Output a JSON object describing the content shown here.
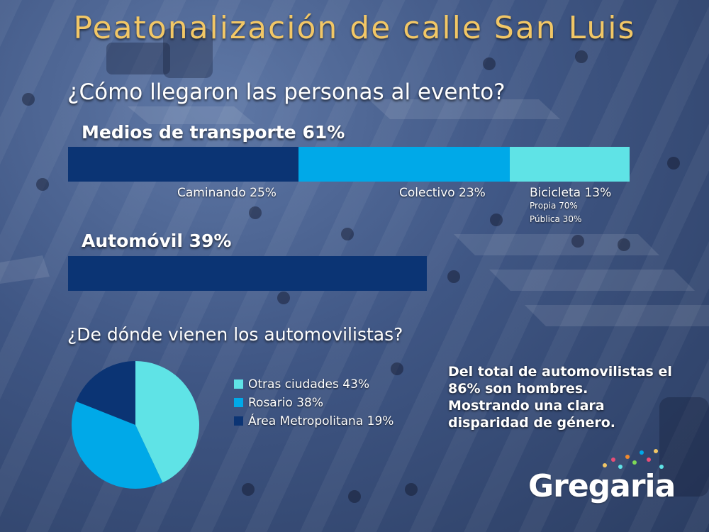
{
  "title": "Peatonalización de calle San Luis",
  "question_transport": "¿Cómo llegaron las personas al evento?",
  "question_origin": "¿De dónde vienen los automovilistas?",
  "chart_data": [
    {
      "type": "bar",
      "orientation": "horizontal-stacked",
      "groups": [
        {
          "label": "Medios de transporte 61%",
          "segments": [
            {
              "name": "Caminando",
              "value": 25,
              "label": "Caminando 25%",
              "color": "#0b3474"
            },
            {
              "name": "Colectivo",
              "value": 23,
              "label": "Colectivo 23%",
              "color": "#00a9e8"
            },
            {
              "name": "Bicicleta",
              "value": 13,
              "label": "Bicicleta 13%",
              "color": "#5fe3e6",
              "breakdown": [
                "Propia 70%",
                "Pública 30%"
              ]
            }
          ]
        },
        {
          "label": "Automóvil  39%",
          "segments": [
            {
              "name": "Automóvil",
              "value": 39,
              "color": "#0b3474"
            }
          ]
        }
      ]
    },
    {
      "type": "pie",
      "slices": [
        {
          "name": "Otras ciudades",
          "value": 43,
          "label": "Otras ciudades 43%",
          "color": "#5fe3e6"
        },
        {
          "name": "Rosario",
          "value": 38,
          "label": "Rosario 38%",
          "color": "#00a9e8"
        },
        {
          "name": "Área Metropolitana",
          "value": 19,
          "label": "Área Metropolitana 19%",
          "color": "#0b3474"
        }
      ]
    }
  ],
  "note_lines": [
    "Del total de automovilistas el",
    "86% son hombres.",
    "Mostrando una clara",
    "disparidad de género."
  ],
  "logo": "Gregaria",
  "colors": {
    "title": "#f2c766",
    "dark_blue": "#0b3474",
    "mid_blue": "#00a9e8",
    "light_cyan": "#5fe3e6"
  }
}
